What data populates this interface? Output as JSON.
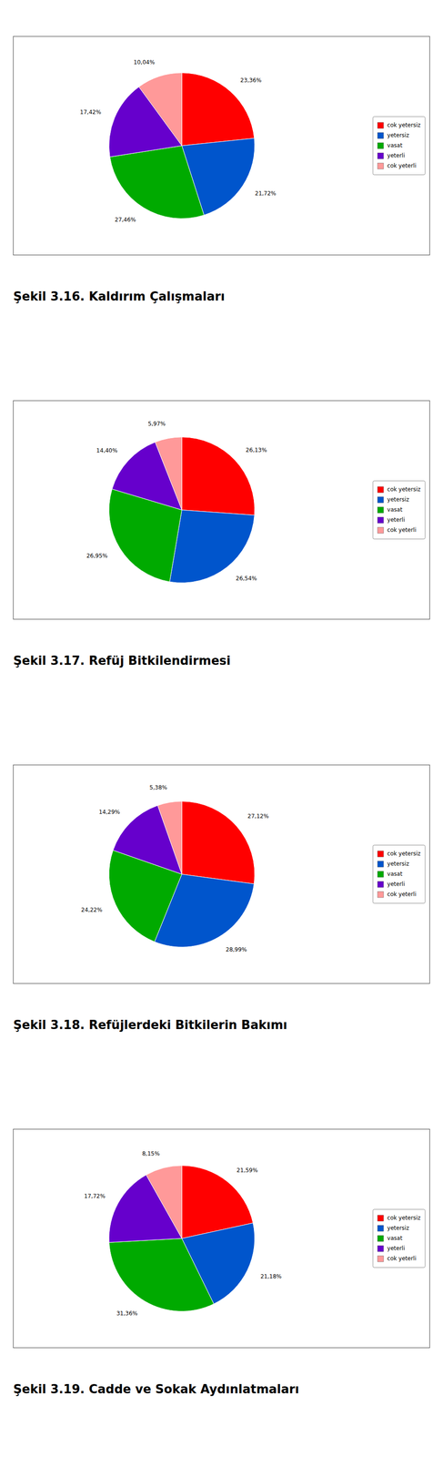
{
  "chart_data": [
    {
      "type": "pie",
      "title": "Şekil 3.16. Kaldırım Çalışmaları",
      "categories": [
        "cok yetersiz",
        "yetersiz",
        "vasat",
        "yeterli",
        "cok yeterli"
      ],
      "values": [
        23.36,
        21.72,
        27.46,
        17.42,
        10.04
      ],
      "value_labels": [
        "23,36%",
        "21,72%",
        "27,46%",
        "17,42%",
        "10,04%"
      ],
      "colors": [
        "#ff0000",
        "#0055cc",
        "#00aa00",
        "#6600cc",
        "#ff9999"
      ],
      "data_labels": true,
      "legend": "right"
    },
    {
      "type": "pie",
      "title": "Şekil 3.17. Refüj Bitkilendirmesi",
      "categories": [
        "cok yetersiz",
        "yetersiz",
        "vasat",
        "yeterli",
        "cok yeterli"
      ],
      "values": [
        26.13,
        26.54,
        26.95,
        14.4,
        5.97
      ],
      "value_labels": [
        "26,13%",
        "26,54%",
        "26,95%",
        "14,40%",
        "5,97%"
      ],
      "colors": [
        "#ff0000",
        "#0055cc",
        "#00aa00",
        "#6600cc",
        "#ff9999"
      ],
      "data_labels": true,
      "legend": "right"
    },
    {
      "type": "pie",
      "title": "Şekil 3.18. Refüjlerdeki Bitkilerin Bakımı",
      "categories": [
        "cok yetersiz",
        "yetersiz",
        "vasat",
        "yeterli",
        "cok yeterli"
      ],
      "values": [
        27.12,
        28.99,
        24.22,
        14.29,
        5.38
      ],
      "value_labels": [
        "27,12%",
        "28,99%",
        "24,22%",
        "14,29%",
        "5,38%"
      ],
      "colors": [
        "#ff0000",
        "#0055cc",
        "#00aa00",
        "#6600cc",
        "#ff9999"
      ],
      "data_labels": true,
      "legend": "right"
    },
    {
      "type": "pie",
      "title": "Şekil 3.19. Cadde ve Sokak Aydınlatmaları",
      "categories": [
        "cok yetersiz",
        "yetersiz",
        "vasat",
        "yeterli",
        "cok yeterli"
      ],
      "values": [
        21.59,
        21.18,
        31.36,
        17.72,
        8.15
      ],
      "value_labels": [
        "21,59%",
        "21,18%",
        "31,36%",
        "17,72%",
        "8,15%"
      ],
      "colors": [
        "#ff0000",
        "#0055cc",
        "#00aa00",
        "#6600cc",
        "#ff9999"
      ],
      "data_labels": true,
      "legend": "right"
    }
  ]
}
